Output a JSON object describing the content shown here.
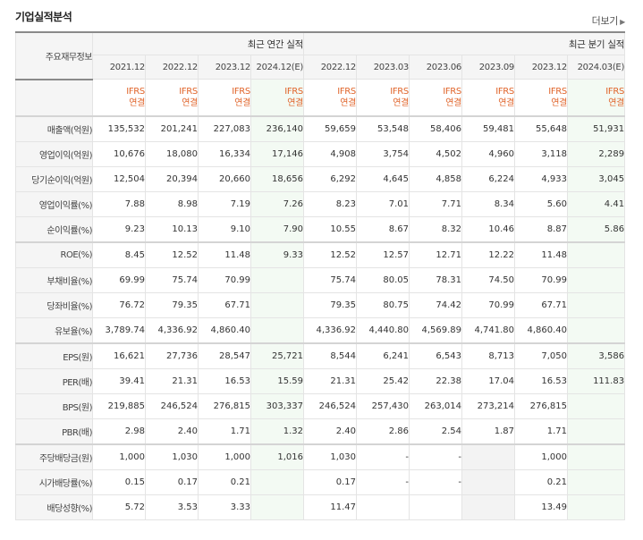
{
  "section_title": "기업실적분석",
  "more_label": "더보기",
  "row_header_label": "주요재무정보",
  "groups": {
    "annual": "최근 연간 실적",
    "quarterly": "최근 분기 실적"
  },
  "columns": [
    "2021.12",
    "2022.12",
    "2023.12",
    "2024.12(E)",
    "2022.12",
    "2023.03",
    "2023.06",
    "2023.09",
    "2023.12",
    "2024.03(E)"
  ],
  "ifrs": {
    "top": "IFRS",
    "bottom": "연결"
  },
  "rows": [
    {
      "label": "매출액(억원)",
      "values": [
        "135,532",
        "201,241",
        "227,083",
        "236,140",
        "59,659",
        "53,548",
        "58,406",
        "59,481",
        "55,648",
        "51,931"
      ]
    },
    {
      "label": "영업이익(억원)",
      "values": [
        "10,676",
        "18,080",
        "16,334",
        "17,146",
        "4,908",
        "3,754",
        "4,502",
        "4,960",
        "3,118",
        "2,289"
      ]
    },
    {
      "label": "당기순이익(억원)",
      "values": [
        "12,504",
        "20,394",
        "20,660",
        "18,656",
        "6,292",
        "4,645",
        "4,858",
        "6,224",
        "4,933",
        "3,045"
      ]
    },
    {
      "label": "영업이익률(%)",
      "values": [
        "7.88",
        "8.98",
        "7.19",
        "7.26",
        "8.23",
        "7.01",
        "7.71",
        "8.34",
        "5.60",
        "4.41"
      ]
    },
    {
      "label": "순이익률(%)",
      "values": [
        "9.23",
        "10.13",
        "9.10",
        "7.90",
        "10.55",
        "8.67",
        "8.32",
        "10.46",
        "8.87",
        "5.86"
      ]
    },
    {
      "label": "ROE(%)",
      "values": [
        "8.45",
        "12.52",
        "11.48",
        "9.33",
        "12.52",
        "12.57",
        "12.71",
        "12.22",
        "11.48",
        ""
      ]
    },
    {
      "label": "부채비율(%)",
      "values": [
        "69.99",
        "75.74",
        "70.99",
        "",
        "75.74",
        "80.05",
        "78.31",
        "74.50",
        "70.99",
        ""
      ]
    },
    {
      "label": "당좌비율(%)",
      "values": [
        "76.72",
        "79.35",
        "67.71",
        "",
        "79.35",
        "80.75",
        "74.42",
        "70.99",
        "67.71",
        ""
      ]
    },
    {
      "label": "유보율(%)",
      "values": [
        "3,789.74",
        "4,336.92",
        "4,860.40",
        "",
        "4,336.92",
        "4,440.80",
        "4,569.89",
        "4,741.80",
        "4,860.40",
        ""
      ]
    },
    {
      "label": "EPS(원)",
      "values": [
        "16,621",
        "27,736",
        "28,547",
        "25,721",
        "8,544",
        "6,241",
        "6,543",
        "8,713",
        "7,050",
        "3,586"
      ]
    },
    {
      "label": "PER(배)",
      "values": [
        "39.41",
        "21.31",
        "16.53",
        "15.59",
        "21.31",
        "25.42",
        "22.38",
        "17.04",
        "16.53",
        "111.83"
      ]
    },
    {
      "label": "BPS(원)",
      "values": [
        "219,885",
        "246,524",
        "276,815",
        "303,337",
        "246,524",
        "257,430",
        "263,014",
        "273,214",
        "276,815",
        ""
      ]
    },
    {
      "label": "PBR(배)",
      "values": [
        "2.98",
        "2.40",
        "1.71",
        "1.32",
        "2.40",
        "2.86",
        "2.54",
        "1.87",
        "1.71",
        ""
      ]
    },
    {
      "label": "주당배당금(원)",
      "values": [
        "1,000",
        "1,030",
        "1,000",
        "1,016",
        "1,030",
        "-",
        "-",
        "",
        "1,000",
        ""
      ]
    },
    {
      "label": "시가배당률(%)",
      "values": [
        "0.15",
        "0.17",
        "0.21",
        "",
        "0.17",
        "-",
        "-",
        "",
        "0.21",
        ""
      ]
    },
    {
      "label": "배당성향(%)",
      "values": [
        "5.72",
        "3.53",
        "3.33",
        "",
        "11.47",
        "",
        "",
        "",
        "13.49",
        ""
      ]
    }
  ]
}
